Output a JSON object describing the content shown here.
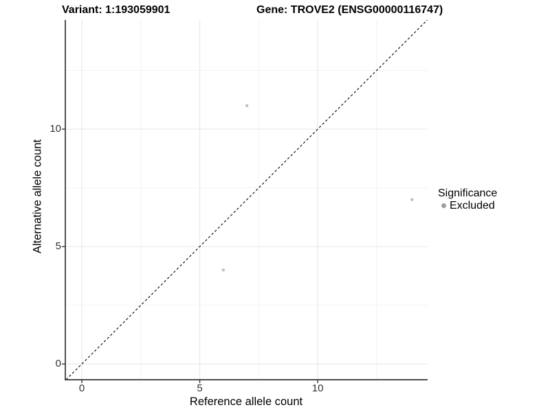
{
  "chart_data": {
    "type": "scatter",
    "titles": {
      "variant": "Variant: 1:193059901",
      "gene": "Gene: TROVE2 (ENSG00000116747)"
    },
    "xlabel": "Reference allele count",
    "ylabel": "Alternative allele count",
    "x_ticks": [
      0,
      5,
      10
    ],
    "y_ticks": [
      0,
      5,
      10
    ],
    "x_minor": [
      2.5,
      7.5,
      12.5
    ],
    "y_minor": [
      2.5,
      7.5,
      12.5
    ],
    "xlim": [
      -0.7,
      14.66
    ],
    "ylim": [
      -0.67,
      14.65
    ],
    "grid": true,
    "identity_line": {
      "show": true,
      "style": "dashed",
      "color": "#000000"
    },
    "series": [
      {
        "name": "Excluded",
        "color": "#c2c2c2",
        "points": [
          [
            7,
            11
          ],
          [
            6,
            4
          ],
          [
            14,
            7
          ]
        ]
      }
    ],
    "point_radius": 2.3,
    "legend": {
      "position": "right-middle",
      "title": "Significance",
      "items": [
        {
          "label": "Excluded",
          "color": "#9e9e9e"
        }
      ]
    },
    "colors": {
      "grid_major": "#e8e8e8",
      "grid_minor": "#f2f2f2",
      "axis": "#333333",
      "tick_text": "#303030",
      "point": "#c2c2c2",
      "legend_dot": "#9e9e9e"
    }
  }
}
